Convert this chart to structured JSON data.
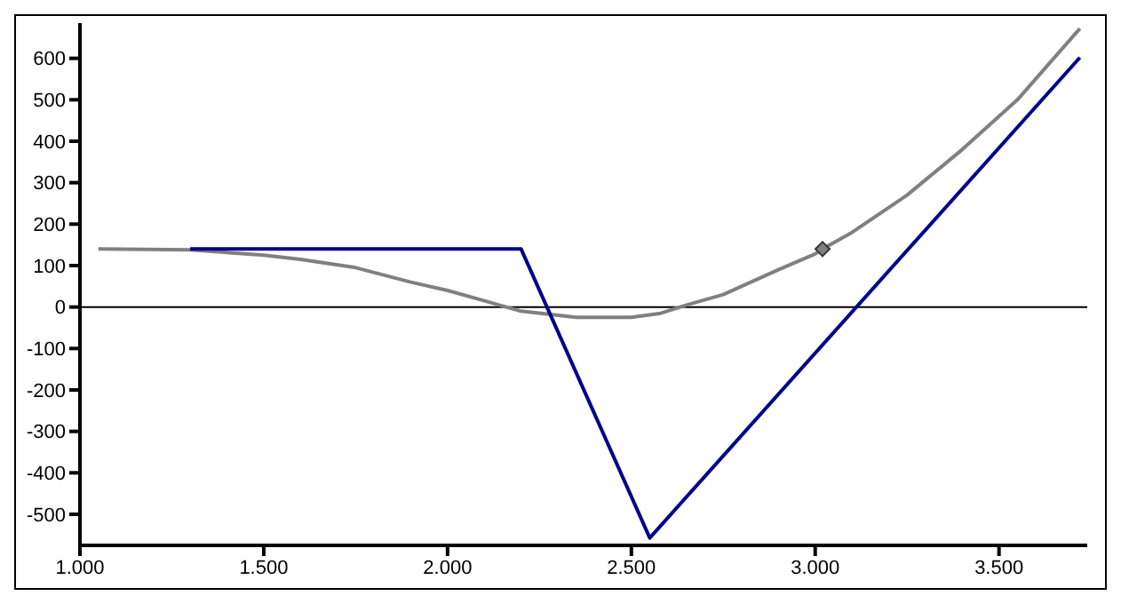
{
  "chart_data": {
    "type": "line",
    "xlim": [
      1000,
      3740
    ],
    "xticks": [
      {
        "value": 1000,
        "label": "1.000"
      },
      {
        "value": 1500,
        "label": "1.500"
      },
      {
        "value": 2000,
        "label": "2.000"
      },
      {
        "value": 2500,
        "label": "2.500"
      },
      {
        "value": 3000,
        "label": "3.000"
      },
      {
        "value": 3500,
        "label": "3.500"
      }
    ],
    "ylim": [
      -575,
      685
    ],
    "yticks": [
      -500,
      -400,
      -300,
      -200,
      -100,
      0,
      100,
      200,
      300,
      400,
      500,
      600
    ],
    "marker": "none",
    "series": [
      {
        "color": "#808080",
        "x": [
          1050,
          1300,
          1500,
          1600,
          1750,
          1900,
          2000,
          2100,
          2200,
          2350,
          2500,
          2580,
          2650,
          2750,
          2900,
          3000,
          3020,
          3100,
          3250,
          3400,
          3550,
          3720
        ],
        "values": [
          140,
          138,
          125,
          115,
          95,
          60,
          40,
          15,
          -10,
          -25,
          -25,
          -15,
          5,
          30,
          90,
          128,
          140,
          180,
          270,
          380,
          500,
          672
        ]
      },
      {
        "color": "#00008b",
        "x": [
          1300,
          2200,
          2550,
          3720
        ],
        "values": [
          140,
          140,
          -557,
          602
        ]
      },
      {
        "type": "scatter",
        "marker": "diamond",
        "color": "#808080",
        "x": [
          3020
        ],
        "values": [
          140
        ]
      }
    ],
    "ref_lines": [
      {
        "axis": "y",
        "value": 0,
        "color": "#000000"
      }
    ]
  }
}
